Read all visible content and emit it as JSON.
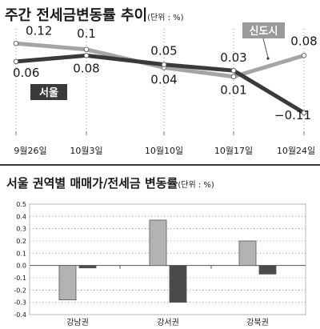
{
  "chart_data": [
    {
      "type": "line",
      "title": "주간 전세금변동률 추이",
      "unit": "(단위 : %)",
      "categories": [
        "9월26일",
        "10월3일",
        "10월10일",
        "10월17일",
        "10월24일"
      ],
      "series": [
        {
          "name": "서울",
          "values": [
            0.06,
            0.08,
            0.05,
            0.03,
            -0.11
          ],
          "color": "#3a3a3a",
          "labels": [
            "0.06",
            "0.08",
            "0.05",
            "0.03",
            "−0.11"
          ]
        },
        {
          "name": "신도시",
          "values": [
            0.12,
            0.1,
            0.04,
            0.01,
            0.08
          ],
          "color": "#a5a5a5",
          "labels": [
            "0.12",
            "0.1",
            "0.04",
            "0.01",
            "0.08"
          ]
        }
      ],
      "ylim": [
        -0.12,
        0.13
      ],
      "grid": "vertical-dotted"
    },
    {
      "type": "bar",
      "title": "서울 권역별 매매가/전세금 변동률",
      "unit": "(단위 : %)",
      "categories": [
        "강남권",
        "강서권",
        "강북권"
      ],
      "series": [
        {
          "values": [
            -0.28,
            0.37,
            0.2
          ],
          "color": "#b3b3b3"
        },
        {
          "values": [
            -0.02,
            -0.3,
            -0.07
          ],
          "color": "#4a4a4a"
        }
      ],
      "ylim": [
        -0.4,
        0.5
      ],
      "yticks": [
        "0.5",
        "0.4",
        "0.3",
        "0.2",
        "0.1",
        "0.0",
        "-0.1",
        "-0.2",
        "-0.3",
        "-0.4"
      ],
      "grid": "horizontal-dotted"
    }
  ]
}
